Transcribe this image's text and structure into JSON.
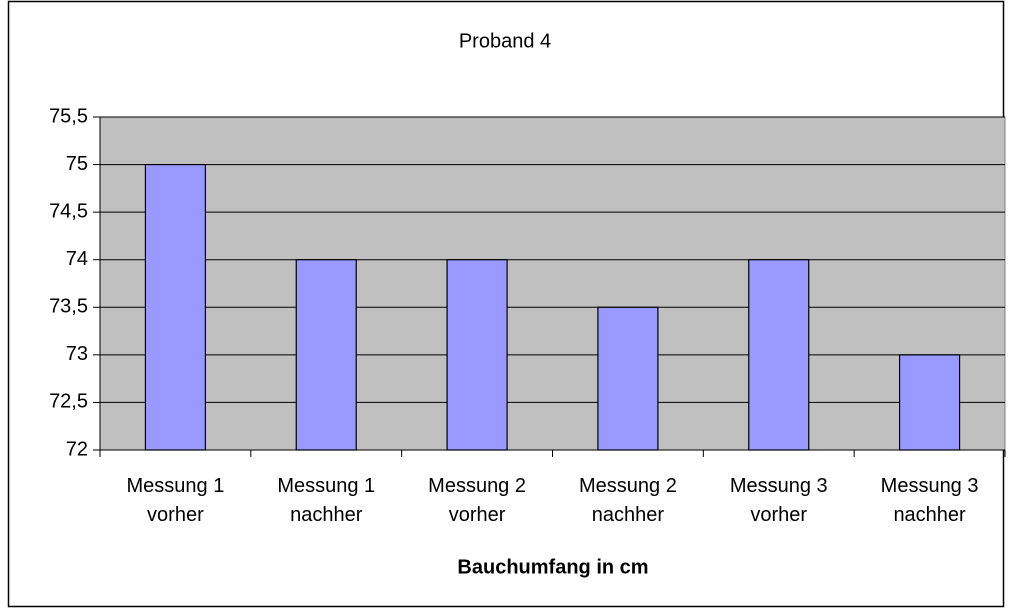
{
  "chart_data": {
    "type": "bar",
    "title": "Proband 4",
    "x_label": "Bauchumfang in cm",
    "categories": [
      "Messung 1 vorher",
      "Messung 1 nachher",
      "Messung 2 vorher",
      "Messung 2 nachher",
      "Messung 3 vorher",
      "Messung 3 nachher"
    ],
    "values": [
      75,
      74,
      74,
      73.5,
      74,
      73
    ],
    "color": "#9999ff",
    "ylim": [
      72,
      75.5
    ],
    "yticks": [
      72,
      {
        "value": 72.5,
        "label": "72,5"
      },
      73,
      {
        "value": 73.5,
        "label": "73,5"
      },
      74,
      {
        "value": 74.5,
        "label": "74,5"
      },
      75,
      {
        "value": 75.5,
        "label": "75,5"
      }
    ],
    "grid": true
  }
}
